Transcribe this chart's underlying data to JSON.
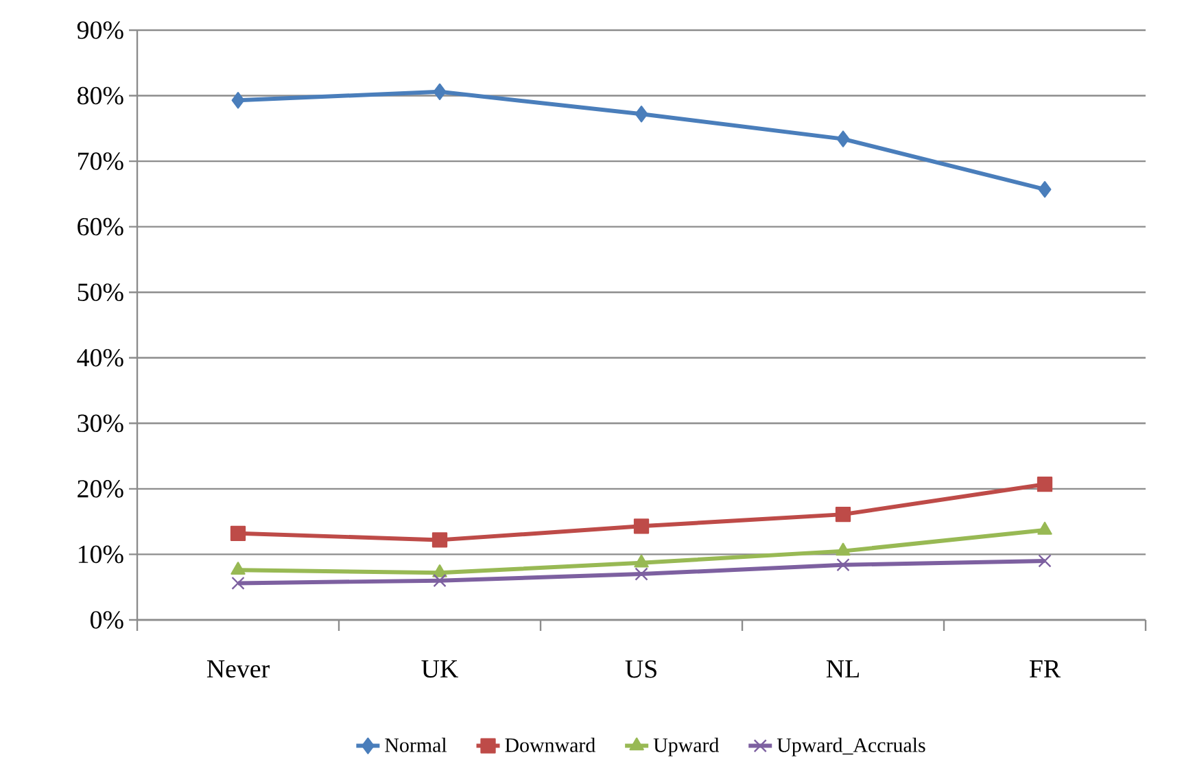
{
  "chart_data": {
    "type": "line",
    "categories": [
      "Never",
      "UK",
      "US",
      "NL",
      "FR"
    ],
    "series": [
      {
        "name": "Normal",
        "color": "#4a7ebb",
        "marker": "diamond",
        "values": [
          79.3,
          80.6,
          77.2,
          73.4,
          65.7
        ]
      },
      {
        "name": "Downward",
        "color": "#be4b48",
        "marker": "square",
        "values": [
          13.2,
          12.2,
          14.3,
          16.1,
          20.7
        ]
      },
      {
        "name": "Upward",
        "color": "#98b954",
        "marker": "triangle",
        "values": [
          7.6,
          7.2,
          8.7,
          10.5,
          13.7
        ]
      },
      {
        "name": "Upward_Accruals",
        "color": "#7d60a0",
        "marker": "cross",
        "values": [
          5.6,
          6.0,
          7.0,
          8.4,
          9.0
        ]
      }
    ],
    "ylim": [
      0,
      90
    ],
    "yticks": [
      {
        "value": 0,
        "label": "0%"
      },
      {
        "value": 10,
        "label": "10%"
      },
      {
        "value": 20,
        "label": "20%"
      },
      {
        "value": 30,
        "label": "30%"
      },
      {
        "value": 40,
        "label": "40%"
      },
      {
        "value": 50,
        "label": "50%"
      },
      {
        "value": 60,
        "label": "60%"
      },
      {
        "value": 70,
        "label": "70%"
      },
      {
        "value": 80,
        "label": "80%"
      },
      {
        "value": 90,
        "label": "90%"
      }
    ],
    "grid": "y",
    "legend": "bottom",
    "line_style": "solid"
  }
}
